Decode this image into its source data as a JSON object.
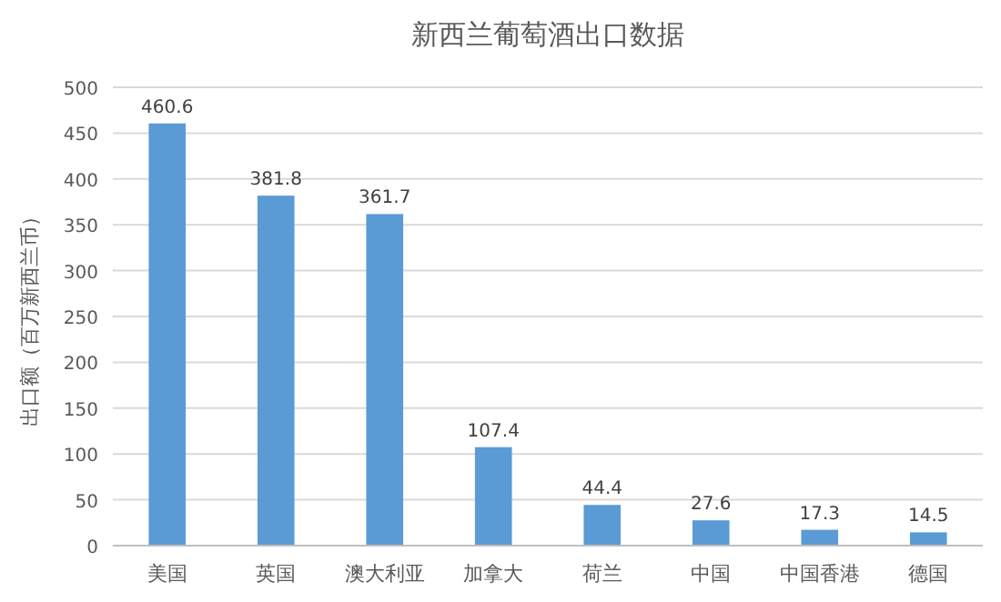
{
  "chart_data": {
    "type": "bar",
    "title": "新西兰葡萄酒出口数据",
    "ylabel": "出口额（百万新西兰币）",
    "categories": [
      "美国",
      "英国",
      "澳大利亚",
      "加拿大",
      "荷兰",
      "中国",
      "中国香港",
      "德国"
    ],
    "values": [
      460.6,
      381.8,
      361.7,
      107.4,
      44.4,
      27.6,
      17.3,
      14.5
    ],
    "color": "#5b9bd5",
    "ylim": [
      0,
      500
    ],
    "yticks": [
      0,
      50,
      100,
      150,
      200,
      250,
      300,
      350,
      400,
      450,
      500
    ],
    "grid": "y",
    "data_labels": true
  }
}
